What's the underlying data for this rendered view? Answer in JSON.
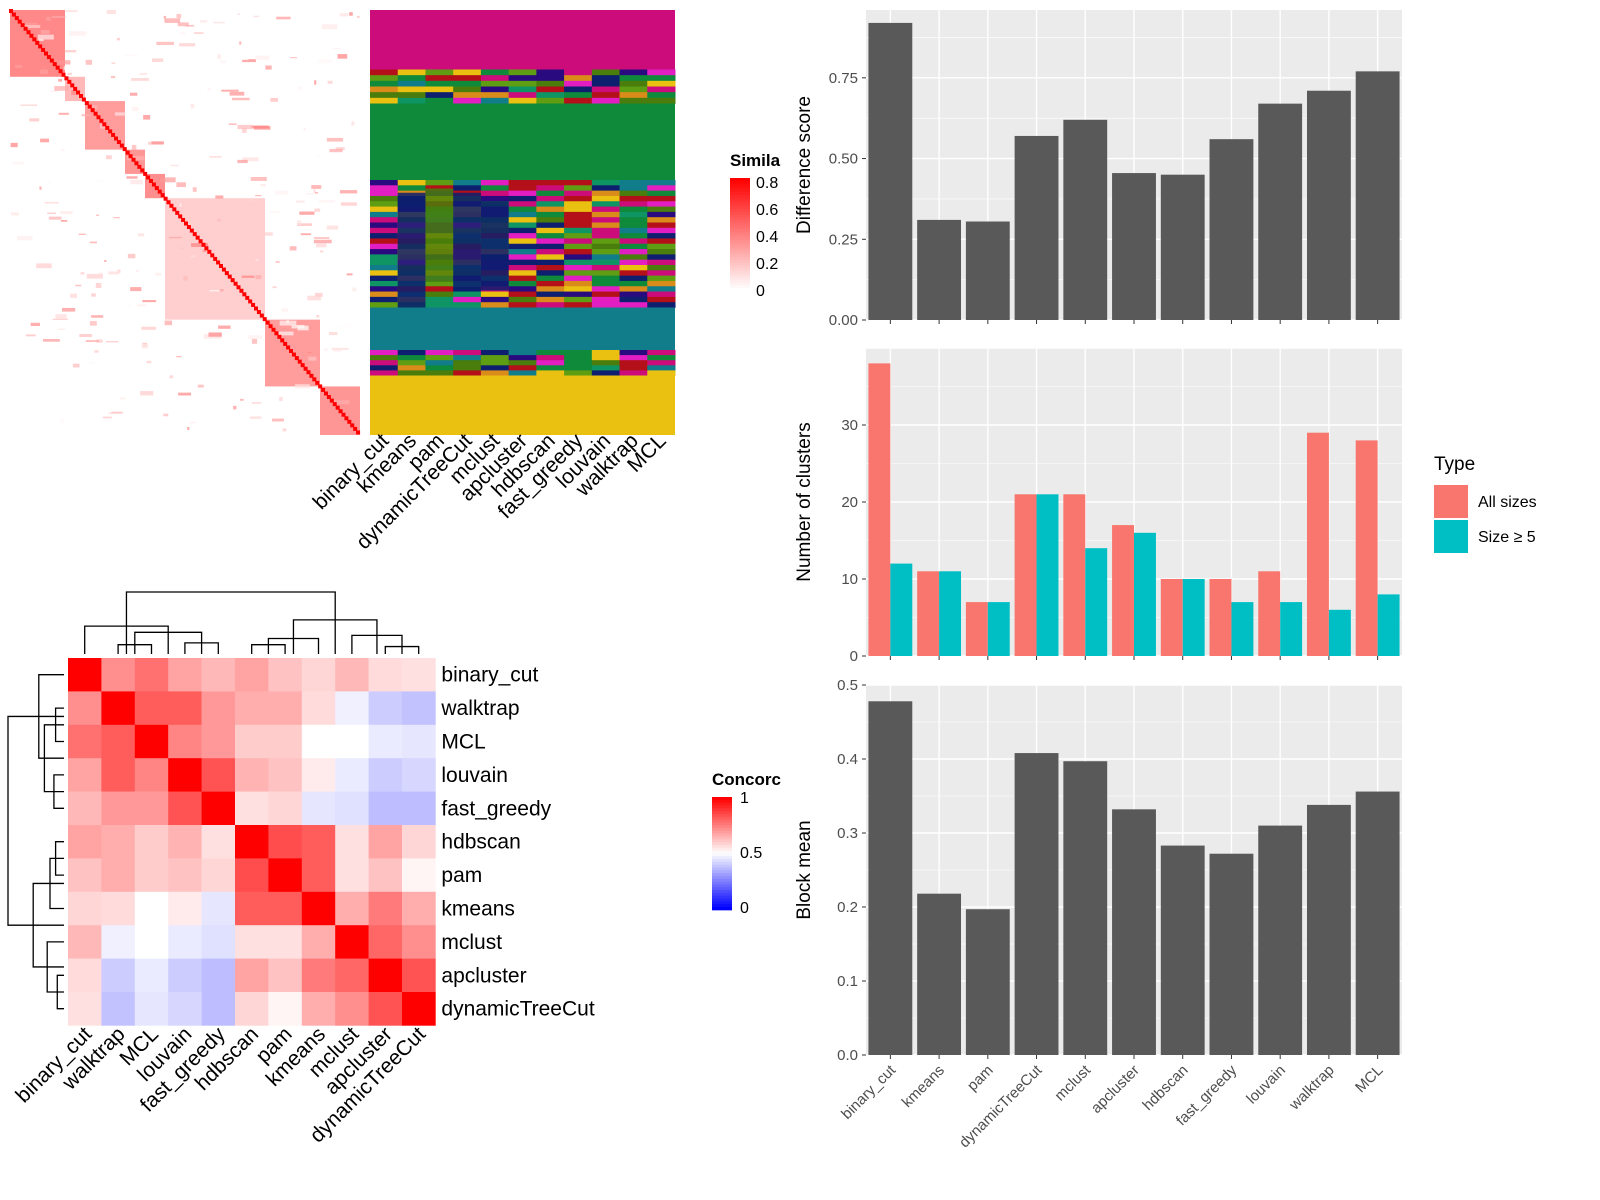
{
  "colors": {
    "bar_fill": "#595959",
    "panel_bg": "#ebebeb",
    "grid": "#ffffff",
    "series_all": "#f8766d",
    "series_size5": "#00bfc4",
    "heat_high": "#ff0000",
    "heat_mid": "#ffffff",
    "heat_low": "#0000ff",
    "cluster_palette": [
      "#cc0c7a",
      "#0e8a3a",
      "#0f9464",
      "#2a0a7f",
      "#4a7d0b",
      "#117d8a",
      "#eac011",
      "#d98c1a",
      "#b3101a",
      "#e21ec2",
      "#5f9e12",
      "#0d1f6e"
    ]
  },
  "similarity": {
    "legend_title": "Simila",
    "legend_ticks": [
      "0.8",
      "0.6",
      "0.4",
      "0.2",
      "0"
    ],
    "methods": [
      "binary_cut",
      "kmeans",
      "pam",
      "dynamicTreeCut",
      "mclust",
      "apcluster",
      "hdbscan",
      "fast_greedy",
      "louvain",
      "walktrap",
      "MCL"
    ]
  },
  "concordance": {
    "legend_title": "Concorc",
    "legend_ticks": [
      "1",
      "0.5",
      "0"
    ],
    "methods": [
      "binary_cut",
      "walktrap",
      "MCL",
      "louvain",
      "fast_greedy",
      "hdbscan",
      "pam",
      "kmeans",
      "mclust",
      "apcluster",
      "dynamicTreeCut"
    ]
  },
  "chart_data": [
    {
      "type": "heatmap",
      "title": "",
      "legend_title": "Concorc",
      "rows": [
        "binary_cut",
        "walktrap",
        "MCL",
        "louvain",
        "fast_greedy",
        "hdbscan",
        "pam",
        "kmeans",
        "mclust",
        "apcluster",
        "dynamicTreeCut"
      ],
      "columns": [
        "binary_cut",
        "walktrap",
        "MCL",
        "louvain",
        "fast_greedy",
        "hdbscan",
        "pam",
        "kmeans",
        "mclust",
        "apcluster",
        "dynamicTreeCut"
      ],
      "values": [
        [
          1.0,
          0.72,
          0.78,
          0.68,
          0.64,
          0.68,
          0.62,
          0.58,
          0.64,
          0.57,
          0.56
        ],
        [
          0.72,
          1.0,
          0.82,
          0.82,
          0.7,
          0.66,
          0.66,
          0.57,
          0.47,
          0.4,
          0.38
        ],
        [
          0.78,
          0.82,
          1.0,
          0.74,
          0.7,
          0.6,
          0.6,
          0.5,
          0.5,
          0.46,
          0.45
        ],
        [
          0.68,
          0.82,
          0.74,
          1.0,
          0.84,
          0.65,
          0.62,
          0.54,
          0.46,
          0.4,
          0.42
        ],
        [
          0.64,
          0.7,
          0.7,
          0.84,
          1.0,
          0.56,
          0.58,
          0.45,
          0.44,
          0.37,
          0.37
        ],
        [
          0.68,
          0.66,
          0.6,
          0.65,
          0.56,
          1.0,
          0.85,
          0.82,
          0.56,
          0.68,
          0.58
        ],
        [
          0.62,
          0.66,
          0.6,
          0.62,
          0.58,
          0.85,
          1.0,
          0.82,
          0.56,
          0.62,
          0.52
        ],
        [
          0.58,
          0.57,
          0.5,
          0.54,
          0.45,
          0.82,
          0.82,
          1.0,
          0.66,
          0.76,
          0.66
        ],
        [
          0.64,
          0.47,
          0.5,
          0.46,
          0.44,
          0.56,
          0.56,
          0.66,
          1.0,
          0.8,
          0.72
        ],
        [
          0.57,
          0.4,
          0.46,
          0.4,
          0.37,
          0.68,
          0.62,
          0.76,
          0.8,
          1.0,
          0.84
        ],
        [
          0.56,
          0.38,
          0.45,
          0.42,
          0.37,
          0.58,
          0.52,
          0.66,
          0.72,
          0.84,
          1.0
        ]
      ],
      "scale": [
        0,
        0.5,
        1
      ]
    },
    {
      "type": "bar",
      "title": "",
      "categories": [
        "binary_cut",
        "kmeans",
        "pam",
        "dynamicTreeCut",
        "mclust",
        "apcluster",
        "hdbscan",
        "fast_greedy",
        "louvain",
        "walktrap",
        "MCL"
      ],
      "values": [
        0.92,
        0.31,
        0.305,
        0.57,
        0.62,
        0.455,
        0.45,
        0.56,
        0.67,
        0.71,
        0.77
      ],
      "ylabel": "Difference score",
      "ylim": [
        0,
        0.96
      ],
      "yticks": [
        "0.00",
        "0.25",
        "0.50",
        "0.75"
      ]
    },
    {
      "type": "bar",
      "title": "",
      "categories": [
        "binary_cut",
        "kmeans",
        "pam",
        "dynamicTreeCut",
        "mclust",
        "apcluster",
        "hdbscan",
        "fast_greedy",
        "louvain",
        "walktrap",
        "MCL"
      ],
      "series": [
        {
          "name": "All sizes",
          "values": [
            38,
            11,
            7,
            21,
            21,
            17,
            10,
            10,
            11,
            29,
            28
          ]
        },
        {
          "name": "Size ≥ 5",
          "values": [
            12,
            11,
            7,
            21,
            14,
            16,
            10,
            7,
            7,
            6,
            8
          ]
        }
      ],
      "ylabel": "Number of clusters",
      "ylim": [
        0,
        40
      ],
      "yticks": [
        "0",
        "10",
        "20",
        "30"
      ],
      "legend": {
        "title": "Type",
        "position": "right"
      }
    },
    {
      "type": "bar",
      "title": "",
      "categories": [
        "binary_cut",
        "kmeans",
        "pam",
        "dynamicTreeCut",
        "mclust",
        "apcluster",
        "hdbscan",
        "fast_greedy",
        "louvain",
        "walktrap",
        "MCL"
      ],
      "values": [
        0.478,
        0.218,
        0.197,
        0.408,
        0.397,
        0.332,
        0.283,
        0.272,
        0.31,
        0.338,
        0.356
      ],
      "ylabel": "Block mean",
      "ylim": [
        0,
        0.5
      ],
      "yticks": [
        "0.0",
        "0.1",
        "0.2",
        "0.3",
        "0.4",
        "0.5"
      ]
    }
  ]
}
